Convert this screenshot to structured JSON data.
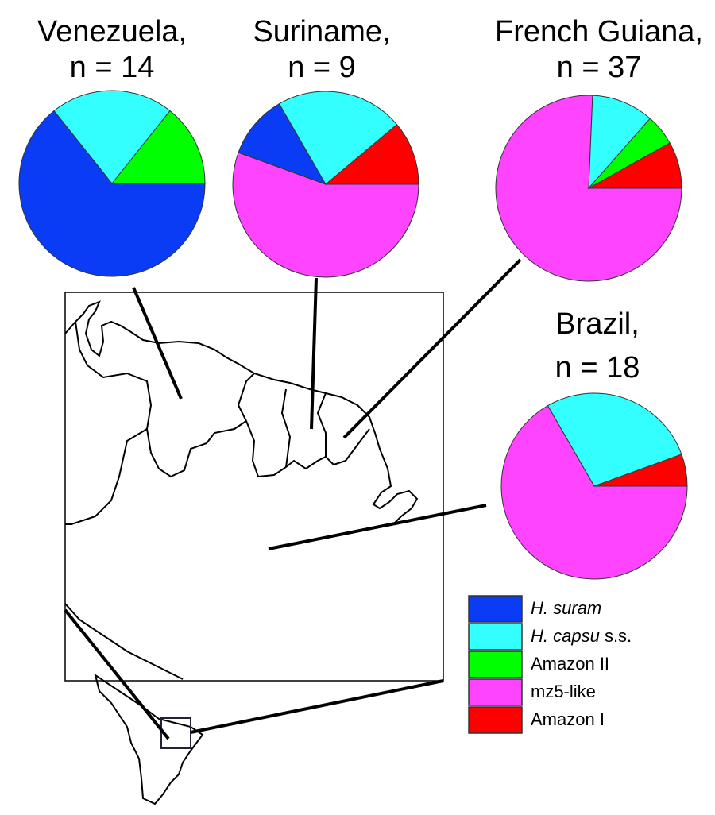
{
  "chart_data": [
    {
      "type": "pie",
      "title": "Venezuela,",
      "subtitle": "n = 14",
      "categories": [
        "H. suram",
        "H. capsu s.s.",
        "Amazon II"
      ],
      "values": [
        9,
        3,
        2
      ],
      "colors": [
        "#0a3cf5",
        "#33ffff",
        "#00ff00"
      ]
    },
    {
      "type": "pie",
      "title": "Suriname,",
      "subtitle": "n = 9",
      "categories": [
        "mz5-like",
        "H. suram",
        "H. capsu s.s.",
        "Amazon I"
      ],
      "values": [
        5,
        1,
        2,
        1
      ],
      "colors": [
        "#ff44ff",
        "#0a3cf5",
        "#33ffff",
        "#ff0000"
      ]
    },
    {
      "type": "pie",
      "title": "French Guiana,",
      "subtitle": "n = 37",
      "categories": [
        "mz5-like",
        "H. capsu s.s.",
        "Amazon II",
        "Amazon I"
      ],
      "values": [
        28,
        4,
        2,
        3
      ],
      "colors": [
        "#ff44ff",
        "#33ffff",
        "#00ff00",
        "#ff0000"
      ]
    },
    {
      "type": "pie",
      "title": "Brazil,",
      "subtitle": "n = 18",
      "categories": [
        "mz5-like",
        "H. capsu s.s.",
        "Amazon I"
      ],
      "values": [
        12,
        5,
        1
      ],
      "colors": [
        "#ff44ff",
        "#33ffff",
        "#ff0000"
      ]
    }
  ],
  "legend": {
    "entries": [
      [
        {
          "text": "H. suram",
          "italic": true
        }
      ],
      [
        {
          "text": "H. capsu",
          "italic": true
        },
        {
          "text": " s.s."
        }
      ],
      [
        {
          "text": "Amazon II"
        }
      ],
      [
        {
          "text": "mz5-like"
        }
      ],
      [
        {
          "text": "Amazon I"
        }
      ]
    ],
    "colors": [
      "#0a3cf5",
      "#33ffff",
      "#00ff00",
      "#ff44ff",
      "#ff0000"
    ]
  }
}
